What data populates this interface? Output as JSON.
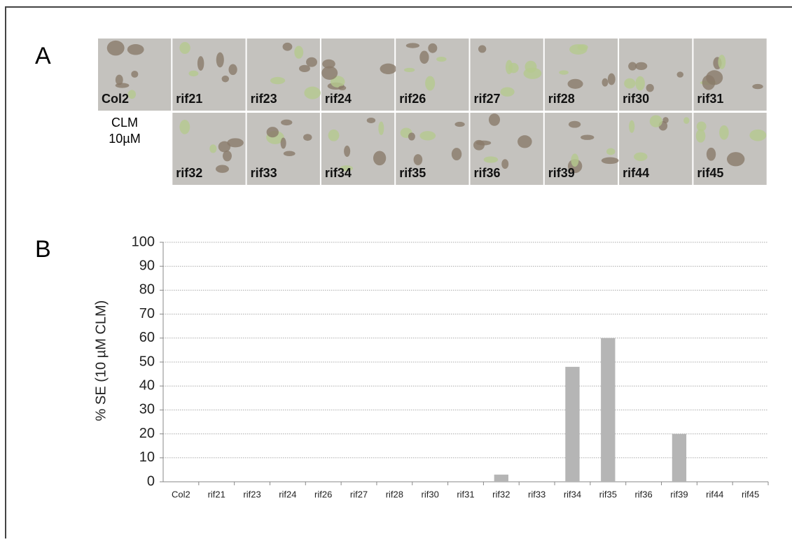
{
  "panel_a": {
    "label": "A",
    "row1": [
      "Col2",
      "rif21",
      "rif23",
      "rif24",
      "rif26",
      "rif27",
      "rif28",
      "rif30",
      "rif31"
    ],
    "condition": [
      "CLM",
      "10µM"
    ],
    "row2": [
      "rif32",
      "rif33",
      "rif34",
      "rif35",
      "rif36",
      "rif39",
      "rif44",
      "rif45"
    ]
  },
  "panel_b": {
    "label": "B"
  },
  "chart_data": {
    "type": "bar",
    "y_label": "% SE (10 µM CLM)",
    "categories": [
      "Col2",
      "rif21",
      "rif23",
      "rif24",
      "rif26",
      "rif27",
      "rif28",
      "rif30",
      "rif31",
      "rif32",
      "rif33",
      "rif34",
      "rif35",
      "rif36",
      "rif39",
      "rif44",
      "rif45"
    ],
    "values": [
      0,
      0,
      0,
      0,
      0,
      0,
      0,
      0,
      0,
      3,
      0,
      48,
      60,
      0,
      20,
      0,
      0
    ],
    "color": "#b5b5b5",
    "ylim": [
      0,
      100
    ],
    "yticks": [
      0,
      10,
      20,
      30,
      40,
      50,
      60,
      70,
      80,
      90,
      100
    ],
    "grid": true
  }
}
